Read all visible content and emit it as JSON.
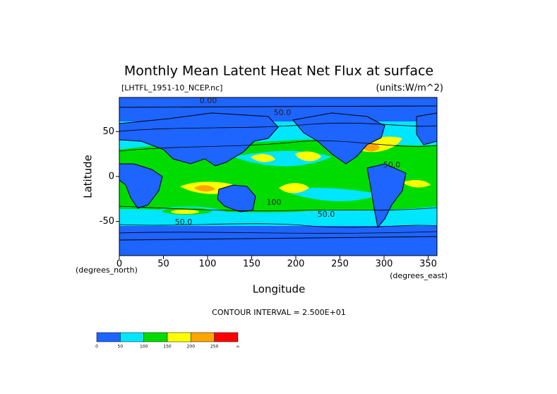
{
  "chart_data": {
    "type": "contour",
    "title": "Monthly Mean Latent Heat Net Flux at surface",
    "file_label": "[LHTFL_1951-10_NCEP.nc]",
    "units_label": "(units:W/m^2)",
    "x_label": "Longitude",
    "y_label": "Latitude",
    "x_units": "(degrees_east)",
    "y_units": "(degrees_north)",
    "contour_interval_label": "CONTOUR INTERVAL = 2.500E+01",
    "xlim": [
      0,
      360
    ],
    "ylim": [
      -88,
      88
    ],
    "xticks": [
      0,
      50,
      100,
      150,
      200,
      250,
      300,
      350
    ],
    "yticks": [
      -50,
      0,
      50
    ],
    "contour_labels": [
      "0.00",
      "50.0",
      "100",
      "50.0",
      "50.0",
      "50.0"
    ],
    "colorbar": {
      "levels": [
        0,
        50,
        100,
        150,
        200,
        250
      ],
      "top_label": "∞",
      "colors": [
        "#1e64ff",
        "#00e6ff",
        "#00dc00",
        "#ffff00",
        "#ffa500",
        "#ff0000"
      ]
    }
  }
}
